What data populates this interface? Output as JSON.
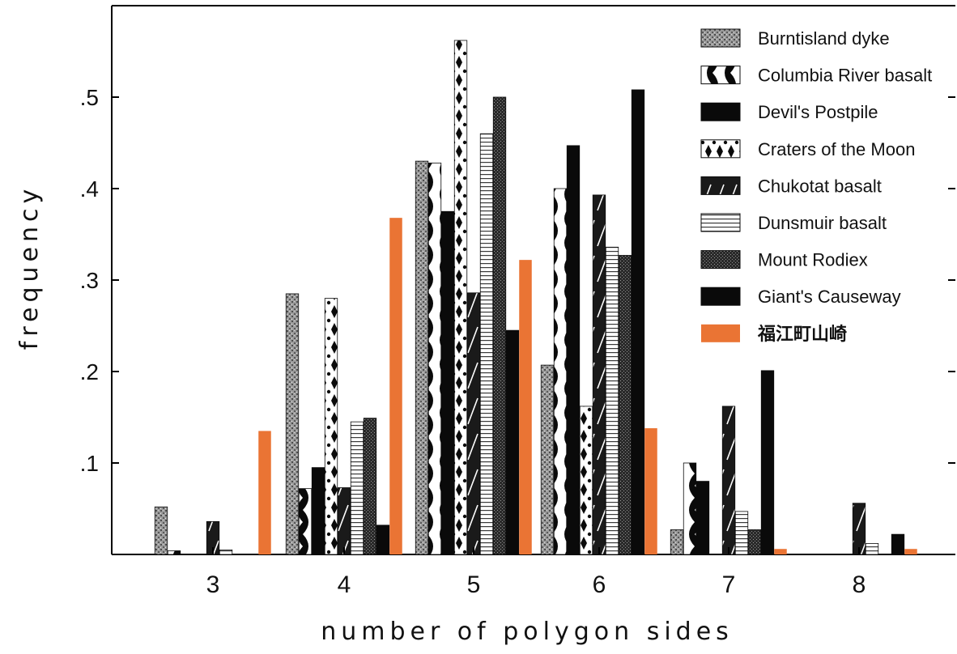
{
  "chart_data": {
    "type": "bar",
    "title": "",
    "xlabel": "number of polygon sides",
    "ylabel": "frequency",
    "categories": [
      "3",
      "4",
      "5",
      "6",
      "7",
      "8"
    ],
    "ylim": [
      0,
      0.6
    ],
    "yticks": [
      {
        "value": 0.1,
        "label": ".1"
      },
      {
        "value": 0.2,
        "label": ".2"
      },
      {
        "value": 0.3,
        "label": ".3"
      },
      {
        "value": 0.4,
        "label": ".4"
      },
      {
        "value": 0.5,
        "label": ".5"
      }
    ],
    "grid": false,
    "legend_position": "top-right",
    "series": [
      {
        "name": "Burntisland dyke",
        "pattern": "stipple",
        "values": [
          0.052,
          0.285,
          0.43,
          0.207,
          0.027,
          null
        ]
      },
      {
        "name": "Columbia River basalt",
        "pattern": "scallop",
        "values": [
          0.004,
          0.072,
          0.428,
          0.4,
          0.1,
          null
        ]
      },
      {
        "name": "Devil's Postpile",
        "pattern": "solid",
        "values": [
          0.0,
          0.095,
          0.375,
          0.447,
          0.08,
          null
        ]
      },
      {
        "name": "Craters of the Moon",
        "pattern": "diamond",
        "values": [
          0.0,
          0.28,
          0.562,
          0.162,
          null,
          null
        ]
      },
      {
        "name": "Chukotat basalt",
        "pattern": "hatch",
        "values": [
          0.036,
          0.073,
          0.286,
          0.393,
          0.162,
          0.056
        ]
      },
      {
        "name": "Dunsmuir basalt",
        "pattern": "lines",
        "values": [
          0.005,
          0.145,
          0.46,
          0.336,
          0.047,
          0.012
        ]
      },
      {
        "name": "Mount Rodiex",
        "pattern": "dense",
        "values": [
          0.0,
          0.149,
          0.5,
          0.327,
          0.027,
          0.0
        ]
      },
      {
        "name": "Giant's Causeway",
        "pattern": "solid",
        "values": [
          0.0,
          0.032,
          0.245,
          0.508,
          0.201,
          0.022
        ]
      },
      {
        "name": "福江町山崎",
        "pattern": "orange",
        "values": [
          0.135,
          0.368,
          0.322,
          0.138,
          0.006,
          0.006
        ]
      }
    ]
  },
  "colors": {
    "highlight": "#ea7434",
    "ink": "#0a0a0a",
    "axis": "#000000"
  }
}
